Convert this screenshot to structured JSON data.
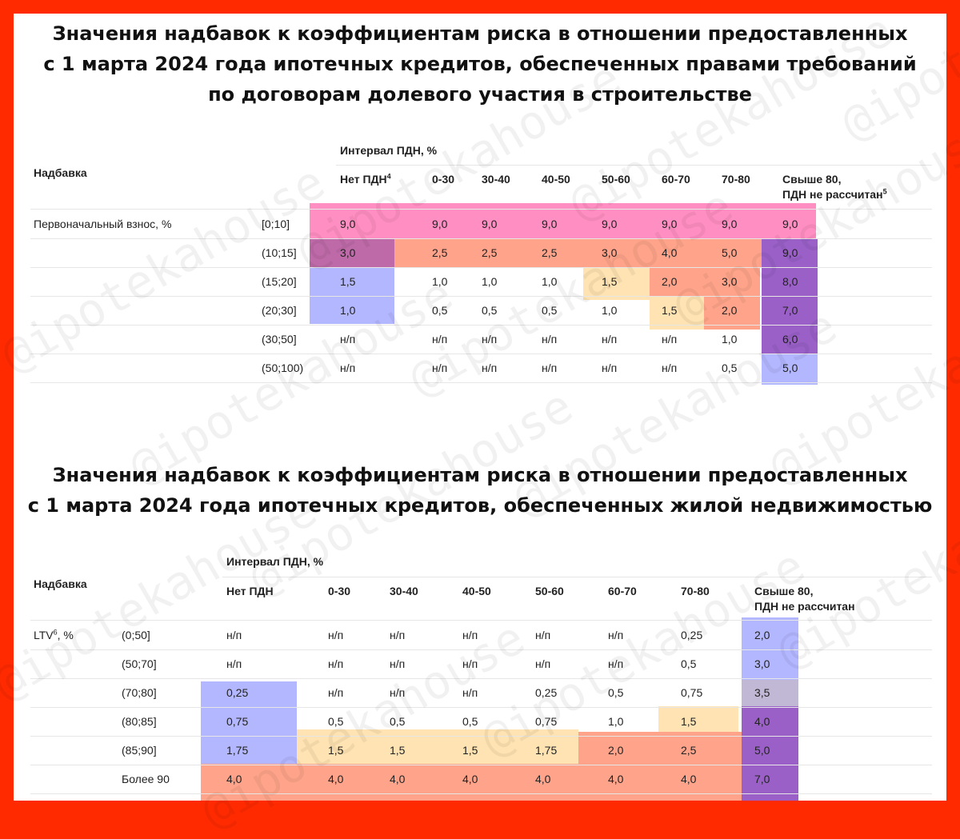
{
  "watermark": "@ipotekahouse",
  "colors": {
    "frame": "#ff2a00",
    "pink": "#ff8ec2",
    "salmon": "#ffa48a",
    "peach": "#ffe3b2",
    "blue": "#b3b7ff",
    "purple": "#9a60c8",
    "mauve": "#be6aa8",
    "grayblue": "#c0b8d4"
  },
  "table1": {
    "title_line1": "Значения надбавок к коэффициентам риска в отношении предоставленных",
    "title_line2": "с 1 марта 2024 года ипотечных кредитов, обеспеченных правами требований",
    "title_line3": "по договорам долевого участия в строительстве",
    "row_header": "Надбавка",
    "group_header": "Интервал ПДН, %",
    "col_no_pdn": "Нет ПДН",
    "col_no_pdn_sup": "4",
    "columns": [
      "0-30",
      "30-40",
      "40-50",
      "50-60",
      "60-70",
      "70-80"
    ],
    "col_over_line1": "Свыше 80,",
    "col_over_line2": "ПДН не рассчитан",
    "col_over_sup": "5",
    "row_label": "Первоначальный взнос, %",
    "rows": [
      {
        "range": "[0;10]",
        "values": [
          "9,0",
          "9,0",
          "9,0",
          "9,0",
          "9,0",
          "9,0",
          "9,0",
          "9,0"
        ]
      },
      {
        "range": "(10;15]",
        "values": [
          "3,0",
          "2,5",
          "2,5",
          "2,5",
          "3,0",
          "4,0",
          "5,0",
          "9,0"
        ]
      },
      {
        "range": "(15;20]",
        "values": [
          "1,5",
          "1,0",
          "1,0",
          "1,0",
          "1,5",
          "2,0",
          "3,0",
          "8,0"
        ]
      },
      {
        "range": "(20;30]",
        "values": [
          "1,0",
          "0,5",
          "0,5",
          "0,5",
          "1,0",
          "1,5",
          "2,0",
          "7,0"
        ]
      },
      {
        "range": "(30;50]",
        "values": [
          "н/п",
          "н/п",
          "н/п",
          "н/п",
          "н/п",
          "н/п",
          "1,0",
          "6,0"
        ]
      },
      {
        "range": "(50;100)",
        "values": [
          "н/п",
          "н/п",
          "н/п",
          "н/п",
          "н/п",
          "н/п",
          "0,5",
          "5,0"
        ]
      }
    ]
  },
  "table2": {
    "title_line1": "Значения надбавок к коэффициентам риска в отношении предоставленных",
    "title_line2": "с 1 марта 2024 года ипотечных кредитов, обеспеченных жилой недвижимостью",
    "row_header": "Надбавка",
    "group_header": "Интервал ПДН, %",
    "col_no_pdn": "Нет ПДН",
    "columns": [
      "0-30",
      "30-40",
      "40-50",
      "50-60",
      "60-70",
      "70-80"
    ],
    "col_over_line1": "Свыше 80,",
    "col_over_line2": "ПДН не рассчитан",
    "row_label": "LTV",
    "row_label_sup": "6",
    "row_label_suffix": ", %",
    "rows": [
      {
        "range": "(0;50]",
        "values": [
          "н/п",
          "н/п",
          "н/п",
          "н/п",
          "н/п",
          "н/п",
          "0,25",
          "2,0"
        ]
      },
      {
        "range": "(50;70]",
        "values": [
          "н/п",
          "н/п",
          "н/п",
          "н/п",
          "н/п",
          "н/п",
          "0,5",
          "3,0"
        ]
      },
      {
        "range": "(70;80]",
        "values": [
          "0,25",
          "н/п",
          "н/п",
          "н/п",
          "0,25",
          "0,5",
          "0,75",
          "3,5"
        ]
      },
      {
        "range": "(80;85]",
        "values": [
          "0,75",
          "0,5",
          "0,5",
          "0,5",
          "0,75",
          "1,0",
          "1,5",
          "4,0"
        ]
      },
      {
        "range": "(85;90]",
        "values": [
          "1,75",
          "1,5",
          "1,5",
          "1,5",
          "1,75",
          "2,0",
          "2,5",
          "5,0"
        ]
      },
      {
        "range": "Более 90",
        "values": [
          "4,0",
          "4,0",
          "4,0",
          "4,0",
          "4,0",
          "4,0",
          "4,0",
          "7,0"
        ]
      }
    ]
  }
}
